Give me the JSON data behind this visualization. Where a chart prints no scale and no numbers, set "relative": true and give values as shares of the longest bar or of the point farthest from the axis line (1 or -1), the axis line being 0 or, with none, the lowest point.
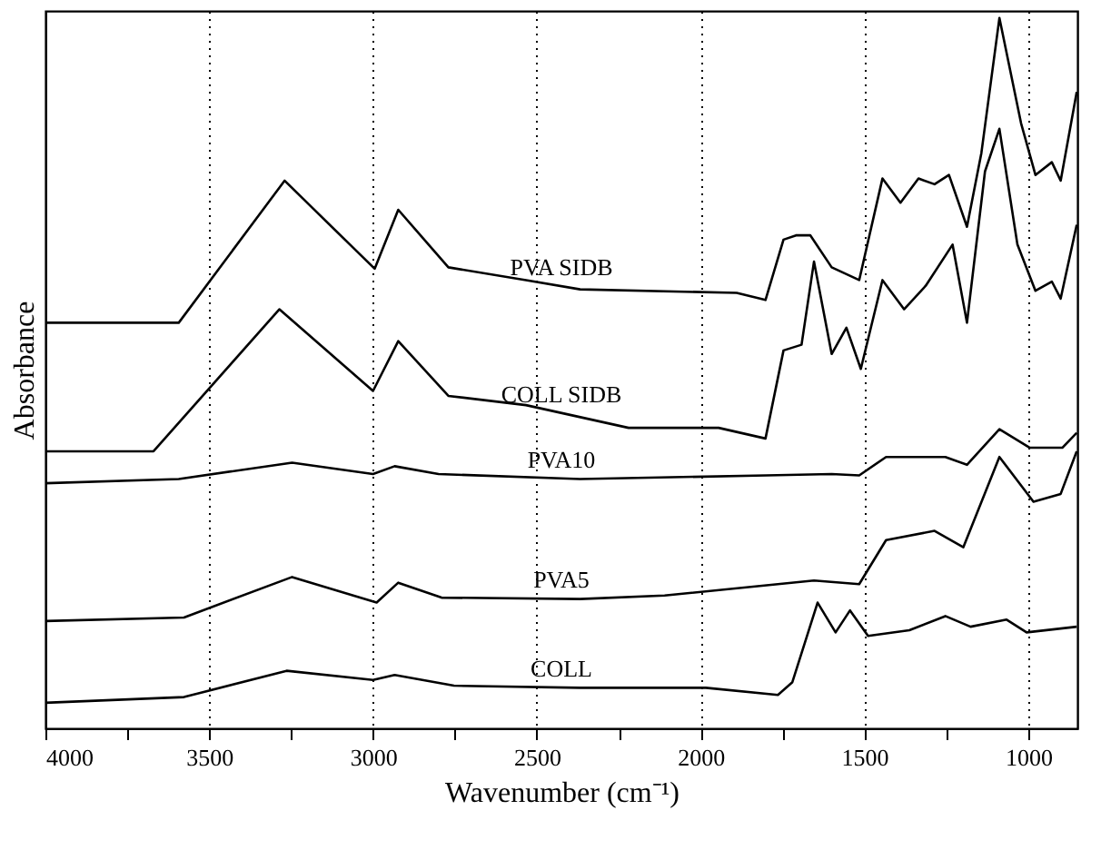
{
  "chart_data": {
    "type": "line",
    "xlabel": "Wavenumber (cm⁻¹)",
    "ylabel": "Absorbance",
    "relative": true,
    "xlim": [
      4000,
      850
    ],
    "xticks": [
      4000,
      {
        "value": 3750,
        "label": null
      },
      3500,
      {
        "value": 3250,
        "label": null
      },
      3000,
      {
        "value": 2750,
        "label": null
      },
      2500,
      {
        "value": 2250,
        "label": null
      },
      2000,
      {
        "value": 1750,
        "label": null
      },
      1500,
      {
        "value": 1250,
        "label": null
      },
      1000
    ],
    "grid": "x",
    "legend": false,
    "line_style": "solid",
    "series": [
      {
        "name": "PVA SIDB",
        "color": "#000000",
        "x": [
          4000,
          3593,
          3270,
          2995,
          2923,
          2770,
          2533,
          2368,
          1890,
          1802,
          1747,
          1709,
          1665,
          1600,
          1516,
          1445,
          1390,
          1335,
          1286,
          1242,
          1187,
          1143,
          1088,
          1022,
          978,
          928,
          901,
          852
        ],
        "values": [
          0.571,
          0.571,
          0.771,
          0.647,
          0.73,
          0.649,
          0.631,
          0.618,
          0.613,
          0.603,
          0.688,
          0.694,
          0.694,
          0.649,
          0.631,
          0.774,
          0.74,
          0.774,
          0.766,
          0.779,
          0.706,
          0.81,
          1.0,
          0.852,
          0.779,
          0.797,
          0.771,
          0.896
        ]
      },
      {
        "name": "COLL SIDB",
        "color": "#000000",
        "x": [
          4000,
          3670,
          3286,
          3000,
          2923,
          2770,
          2533,
          2220,
          1945,
          1802,
          1747,
          1692,
          1654,
          1600,
          1555,
          1511,
          1445,
          1379,
          1313,
          1231,
          1187,
          1132,
          1088,
          1033,
          978,
          928,
          901,
          852
        ],
        "values": [
          0.39,
          0.39,
          0.59,
          0.475,
          0.545,
          0.468,
          0.455,
          0.423,
          0.423,
          0.408,
          0.532,
          0.54,
          0.657,
          0.527,
          0.564,
          0.506,
          0.631,
          0.59,
          0.623,
          0.681,
          0.571,
          0.784,
          0.844,
          0.681,
          0.616,
          0.629,
          0.605,
          0.709
        ]
      },
      {
        "name": "PVA10",
        "color": "#000000",
        "x": [
          4000,
          3593,
          3247,
          3000,
          2934,
          2800,
          2368,
          1800,
          1600,
          1516,
          1434,
          1253,
          1187,
          1088,
          995,
          896,
          852
        ],
        "values": [
          0.345,
          0.351,
          0.374,
          0.358,
          0.369,
          0.358,
          0.351,
          0.356,
          0.358,
          0.356,
          0.382,
          0.382,
          0.371,
          0.421,
          0.395,
          0.395,
          0.416
        ]
      },
      {
        "name": "PVA5",
        "color": "#000000",
        "x": [
          4000,
          3577,
          3247,
          2989,
          2923,
          2791,
          2368,
          2110,
          1654,
          1516,
          1434,
          1286,
          1198,
          1088,
          984,
          901,
          852
        ],
        "values": [
          0.151,
          0.156,
          0.213,
          0.177,
          0.205,
          0.184,
          0.182,
          0.187,
          0.208,
          0.203,
          0.265,
          0.278,
          0.255,
          0.382,
          0.319,
          0.33,
          0.39
        ]
      },
      {
        "name": "COLL",
        "color": "#000000",
        "x": [
          4000,
          3577,
          3264,
          3000,
          2934,
          2753,
          2368,
          1984,
          1764,
          1720,
          1643,
          1588,
          1544,
          1489,
          1363,
          1253,
          1176,
          1066,
          1005,
          852
        ],
        "values": [
          0.036,
          0.044,
          0.081,
          0.068,
          0.075,
          0.06,
          0.057,
          0.057,
          0.047,
          0.065,
          0.177,
          0.135,
          0.166,
          0.13,
          0.138,
          0.158,
          0.143,
          0.153,
          0.135,
          0.143
        ]
      }
    ]
  }
}
